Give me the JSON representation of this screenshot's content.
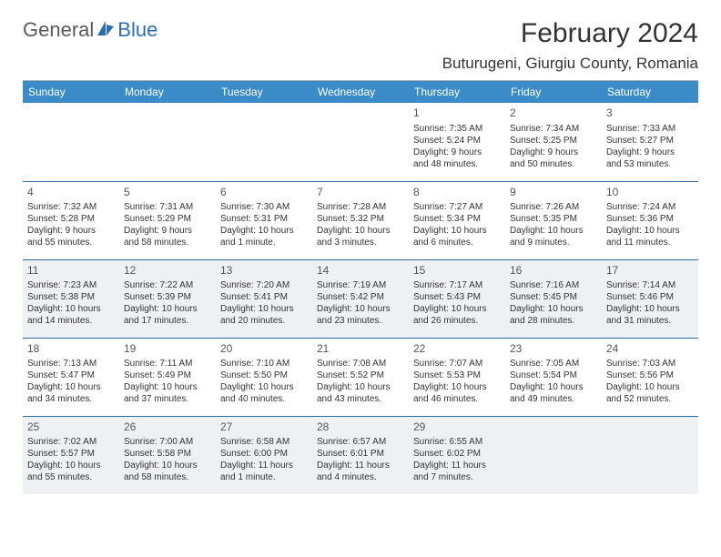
{
  "logo": {
    "general": "General",
    "blue": "Blue"
  },
  "title": "February 2024",
  "location": "Buturugeni, Giurgiu County, Romania",
  "colors": {
    "header_bg": "#3b8bc9",
    "header_fg": "#ffffff",
    "rule": "#2f6ea8",
    "shade": "#eef1f3",
    "logo_gray": "#5a5a5a",
    "logo_blue": "#2a6fb5"
  },
  "weekdays": [
    "Sunday",
    "Monday",
    "Tuesday",
    "Wednesday",
    "Thursday",
    "Friday",
    "Saturday"
  ],
  "weeks": [
    {
      "shaded": false,
      "days": [
        null,
        null,
        null,
        null,
        {
          "n": "1",
          "sr": "Sunrise: 7:35 AM",
          "ss": "Sunset: 5:24 PM",
          "d1": "Daylight: 9 hours",
          "d2": "and 48 minutes."
        },
        {
          "n": "2",
          "sr": "Sunrise: 7:34 AM",
          "ss": "Sunset: 5:25 PM",
          "d1": "Daylight: 9 hours",
          "d2": "and 50 minutes."
        },
        {
          "n": "3",
          "sr": "Sunrise: 7:33 AM",
          "ss": "Sunset: 5:27 PM",
          "d1": "Daylight: 9 hours",
          "d2": "and 53 minutes."
        }
      ]
    },
    {
      "shaded": false,
      "days": [
        {
          "n": "4",
          "sr": "Sunrise: 7:32 AM",
          "ss": "Sunset: 5:28 PM",
          "d1": "Daylight: 9 hours",
          "d2": "and 55 minutes."
        },
        {
          "n": "5",
          "sr": "Sunrise: 7:31 AM",
          "ss": "Sunset: 5:29 PM",
          "d1": "Daylight: 9 hours",
          "d2": "and 58 minutes."
        },
        {
          "n": "6",
          "sr": "Sunrise: 7:30 AM",
          "ss": "Sunset: 5:31 PM",
          "d1": "Daylight: 10 hours",
          "d2": "and 1 minute."
        },
        {
          "n": "7",
          "sr": "Sunrise: 7:28 AM",
          "ss": "Sunset: 5:32 PM",
          "d1": "Daylight: 10 hours",
          "d2": "and 3 minutes."
        },
        {
          "n": "8",
          "sr": "Sunrise: 7:27 AM",
          "ss": "Sunset: 5:34 PM",
          "d1": "Daylight: 10 hours",
          "d2": "and 6 minutes."
        },
        {
          "n": "9",
          "sr": "Sunrise: 7:26 AM",
          "ss": "Sunset: 5:35 PM",
          "d1": "Daylight: 10 hours",
          "d2": "and 9 minutes."
        },
        {
          "n": "10",
          "sr": "Sunrise: 7:24 AM",
          "ss": "Sunset: 5:36 PM",
          "d1": "Daylight: 10 hours",
          "d2": "and 11 minutes."
        }
      ]
    },
    {
      "shaded": true,
      "days": [
        {
          "n": "11",
          "sr": "Sunrise: 7:23 AM",
          "ss": "Sunset: 5:38 PM",
          "d1": "Daylight: 10 hours",
          "d2": "and 14 minutes."
        },
        {
          "n": "12",
          "sr": "Sunrise: 7:22 AM",
          "ss": "Sunset: 5:39 PM",
          "d1": "Daylight: 10 hours",
          "d2": "and 17 minutes."
        },
        {
          "n": "13",
          "sr": "Sunrise: 7:20 AM",
          "ss": "Sunset: 5:41 PM",
          "d1": "Daylight: 10 hours",
          "d2": "and 20 minutes."
        },
        {
          "n": "14",
          "sr": "Sunrise: 7:19 AM",
          "ss": "Sunset: 5:42 PM",
          "d1": "Daylight: 10 hours",
          "d2": "and 23 minutes."
        },
        {
          "n": "15",
          "sr": "Sunrise: 7:17 AM",
          "ss": "Sunset: 5:43 PM",
          "d1": "Daylight: 10 hours",
          "d2": "and 26 minutes."
        },
        {
          "n": "16",
          "sr": "Sunrise: 7:16 AM",
          "ss": "Sunset: 5:45 PM",
          "d1": "Daylight: 10 hours",
          "d2": "and 28 minutes."
        },
        {
          "n": "17",
          "sr": "Sunrise: 7:14 AM",
          "ss": "Sunset: 5:46 PM",
          "d1": "Daylight: 10 hours",
          "d2": "and 31 minutes."
        }
      ]
    },
    {
      "shaded": false,
      "days": [
        {
          "n": "18",
          "sr": "Sunrise: 7:13 AM",
          "ss": "Sunset: 5:47 PM",
          "d1": "Daylight: 10 hours",
          "d2": "and 34 minutes."
        },
        {
          "n": "19",
          "sr": "Sunrise: 7:11 AM",
          "ss": "Sunset: 5:49 PM",
          "d1": "Daylight: 10 hours",
          "d2": "and 37 minutes."
        },
        {
          "n": "20",
          "sr": "Sunrise: 7:10 AM",
          "ss": "Sunset: 5:50 PM",
          "d1": "Daylight: 10 hours",
          "d2": "and 40 minutes."
        },
        {
          "n": "21",
          "sr": "Sunrise: 7:08 AM",
          "ss": "Sunset: 5:52 PM",
          "d1": "Daylight: 10 hours",
          "d2": "and 43 minutes."
        },
        {
          "n": "22",
          "sr": "Sunrise: 7:07 AM",
          "ss": "Sunset: 5:53 PM",
          "d1": "Daylight: 10 hours",
          "d2": "and 46 minutes."
        },
        {
          "n": "23",
          "sr": "Sunrise: 7:05 AM",
          "ss": "Sunset: 5:54 PM",
          "d1": "Daylight: 10 hours",
          "d2": "and 49 minutes."
        },
        {
          "n": "24",
          "sr": "Sunrise: 7:03 AM",
          "ss": "Sunset: 5:56 PM",
          "d1": "Daylight: 10 hours",
          "d2": "and 52 minutes."
        }
      ]
    },
    {
      "shaded": true,
      "days": [
        {
          "n": "25",
          "sr": "Sunrise: 7:02 AM",
          "ss": "Sunset: 5:57 PM",
          "d1": "Daylight: 10 hours",
          "d2": "and 55 minutes."
        },
        {
          "n": "26",
          "sr": "Sunrise: 7:00 AM",
          "ss": "Sunset: 5:58 PM",
          "d1": "Daylight: 10 hours",
          "d2": "and 58 minutes."
        },
        {
          "n": "27",
          "sr": "Sunrise: 6:58 AM",
          "ss": "Sunset: 6:00 PM",
          "d1": "Daylight: 11 hours",
          "d2": "and 1 minute."
        },
        {
          "n": "28",
          "sr": "Sunrise: 6:57 AM",
          "ss": "Sunset: 6:01 PM",
          "d1": "Daylight: 11 hours",
          "d2": "and 4 minutes."
        },
        {
          "n": "29",
          "sr": "Sunrise: 6:55 AM",
          "ss": "Sunset: 6:02 PM",
          "d1": "Daylight: 11 hours",
          "d2": "and 7 minutes."
        },
        null,
        null
      ]
    }
  ]
}
